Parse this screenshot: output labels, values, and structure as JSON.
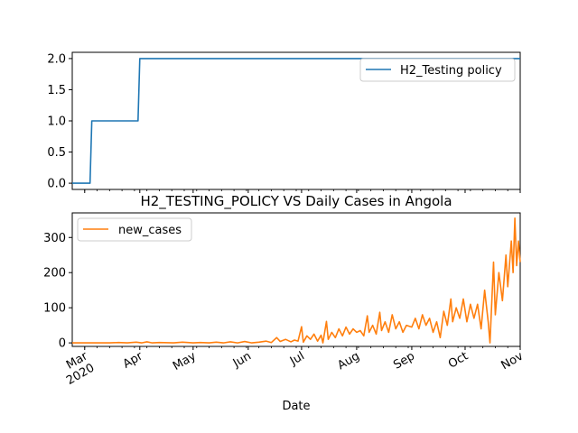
{
  "chart_data": [
    {
      "type": "line",
      "title": "",
      "xlabel": "",
      "ylabel": "",
      "ylim": [
        -0.1,
        2.1
      ],
      "yticks": [
        0.0,
        0.5,
        1.0,
        1.5,
        2.0
      ],
      "ytick_labels": [
        "0.0",
        "0.5",
        "1.0",
        "1.5",
        "2.0"
      ],
      "x_range": [
        "2020-02-23",
        "2020-11-01"
      ],
      "legend_position": "upper-right",
      "series": [
        {
          "name": "H2_Testing policy",
          "color": "#1f77b4",
          "step": true,
          "points": [
            [
              "2020-02-23",
              0
            ],
            [
              "2020-03-04",
              0
            ],
            [
              "2020-03-05",
              1
            ],
            [
              "2020-03-31",
              1
            ],
            [
              "2020-04-01",
              2
            ],
            [
              "2020-11-01",
              2
            ]
          ]
        }
      ]
    },
    {
      "type": "line",
      "title": "H2_TESTING_POLICY VS Daily Cases in Angola",
      "xlabel": "Date",
      "ylabel": "",
      "ylim": [
        -10,
        370
      ],
      "yticks": [
        0,
        100,
        200,
        300
      ],
      "ytick_labels": [
        "0",
        "100",
        "200",
        "300"
      ],
      "x_range": [
        "2020-02-23",
        "2020-11-01"
      ],
      "legend_position": "upper-left",
      "xticks": [
        {
          "date": "2020-03-01",
          "label": "Mar",
          "sublabel": "2020"
        },
        {
          "date": "2020-04-01",
          "label": "Apr",
          "sublabel": ""
        },
        {
          "date": "2020-05-01",
          "label": "May",
          "sublabel": ""
        },
        {
          "date": "2020-06-01",
          "label": "Jun",
          "sublabel": ""
        },
        {
          "date": "2020-07-01",
          "label": "Jul",
          "sublabel": ""
        },
        {
          "date": "2020-08-01",
          "label": "Aug",
          "sublabel": ""
        },
        {
          "date": "2020-09-01",
          "label": "Sep",
          "sublabel": ""
        },
        {
          "date": "2020-10-01",
          "label": "Oct",
          "sublabel": ""
        },
        {
          "date": "2020-11-01",
          "label": "Nov",
          "sublabel": ""
        }
      ],
      "series": [
        {
          "name": "new_cases",
          "color": "#ff7f0e",
          "points": [
            [
              "2020-02-23",
              0
            ],
            [
              "2020-03-15",
              0
            ],
            [
              "2020-03-20",
              1
            ],
            [
              "2020-03-25",
              0
            ],
            [
              "2020-03-30",
              2
            ],
            [
              "2020-04-02",
              0
            ],
            [
              "2020-04-05",
              3
            ],
            [
              "2020-04-08",
              0
            ],
            [
              "2020-04-12",
              1
            ],
            [
              "2020-04-20",
              0
            ],
            [
              "2020-04-25",
              2
            ],
            [
              "2020-05-01",
              0
            ],
            [
              "2020-05-05",
              1
            ],
            [
              "2020-05-10",
              0
            ],
            [
              "2020-05-14",
              2
            ],
            [
              "2020-05-18",
              0
            ],
            [
              "2020-05-22",
              3
            ],
            [
              "2020-05-26",
              0
            ],
            [
              "2020-05-30",
              4
            ],
            [
              "2020-06-03",
              0
            ],
            [
              "2020-06-07",
              2
            ],
            [
              "2020-06-11",
              5
            ],
            [
              "2020-06-14",
              1
            ],
            [
              "2020-06-17",
              15
            ],
            [
              "2020-06-19",
              4
            ],
            [
              "2020-06-22",
              10
            ],
            [
              "2020-06-25",
              3
            ],
            [
              "2020-06-27",
              8
            ],
            [
              "2020-06-29",
              5
            ],
            [
              "2020-07-01",
              46
            ],
            [
              "2020-07-02",
              2
            ],
            [
              "2020-07-04",
              20
            ],
            [
              "2020-07-06",
              10
            ],
            [
              "2020-07-08",
              25
            ],
            [
              "2020-07-10",
              5
            ],
            [
              "2020-07-12",
              22
            ],
            [
              "2020-07-13",
              0
            ],
            [
              "2020-07-15",
              61
            ],
            [
              "2020-07-16",
              10
            ],
            [
              "2020-07-18",
              30
            ],
            [
              "2020-07-20",
              15
            ],
            [
              "2020-07-22",
              40
            ],
            [
              "2020-07-24",
              20
            ],
            [
              "2020-07-26",
              45
            ],
            [
              "2020-07-28",
              25
            ],
            [
              "2020-07-30",
              40
            ],
            [
              "2020-08-01",
              30
            ],
            [
              "2020-08-03",
              35
            ],
            [
              "2020-08-05",
              20
            ],
            [
              "2020-08-07",
              77
            ],
            [
              "2020-08-08",
              30
            ],
            [
              "2020-08-10",
              50
            ],
            [
              "2020-08-12",
              25
            ],
            [
              "2020-08-14",
              87
            ],
            [
              "2020-08-15",
              35
            ],
            [
              "2020-08-17",
              60
            ],
            [
              "2020-08-19",
              30
            ],
            [
              "2020-08-21",
              80
            ],
            [
              "2020-08-23",
              40
            ],
            [
              "2020-08-25",
              60
            ],
            [
              "2020-08-27",
              30
            ],
            [
              "2020-08-29",
              50
            ],
            [
              "2020-09-01",
              45
            ],
            [
              "2020-09-03",
              70
            ],
            [
              "2020-09-05",
              40
            ],
            [
              "2020-09-07",
              80
            ],
            [
              "2020-09-09",
              50
            ],
            [
              "2020-09-11",
              70
            ],
            [
              "2020-09-13",
              30
            ],
            [
              "2020-09-15",
              60
            ],
            [
              "2020-09-17",
              15
            ],
            [
              "2020-09-19",
              90
            ],
            [
              "2020-09-21",
              50
            ],
            [
              "2020-09-23",
              125
            ],
            [
              "2020-09-24",
              60
            ],
            [
              "2020-09-26",
              100
            ],
            [
              "2020-09-28",
              70
            ],
            [
              "2020-09-30",
              125
            ],
            [
              "2020-10-02",
              60
            ],
            [
              "2020-10-04",
              110
            ],
            [
              "2020-10-06",
              70
            ],
            [
              "2020-10-08",
              110
            ],
            [
              "2020-10-10",
              40
            ],
            [
              "2020-10-12",
              150
            ],
            [
              "2020-10-14",
              60
            ],
            [
              "2020-10-15",
              0
            ],
            [
              "2020-10-17",
              230
            ],
            [
              "2020-10-18",
              80
            ],
            [
              "2020-10-20",
              200
            ],
            [
              "2020-10-22",
              120
            ],
            [
              "2020-10-24",
              250
            ],
            [
              "2020-10-25",
              160
            ],
            [
              "2020-10-27",
              290
            ],
            [
              "2020-10-28",
              200
            ],
            [
              "2020-10-29",
              355
            ],
            [
              "2020-10-30",
              220
            ],
            [
              "2020-10-31",
              290
            ],
            [
              "2020-11-01",
              230
            ]
          ]
        }
      ]
    }
  ]
}
